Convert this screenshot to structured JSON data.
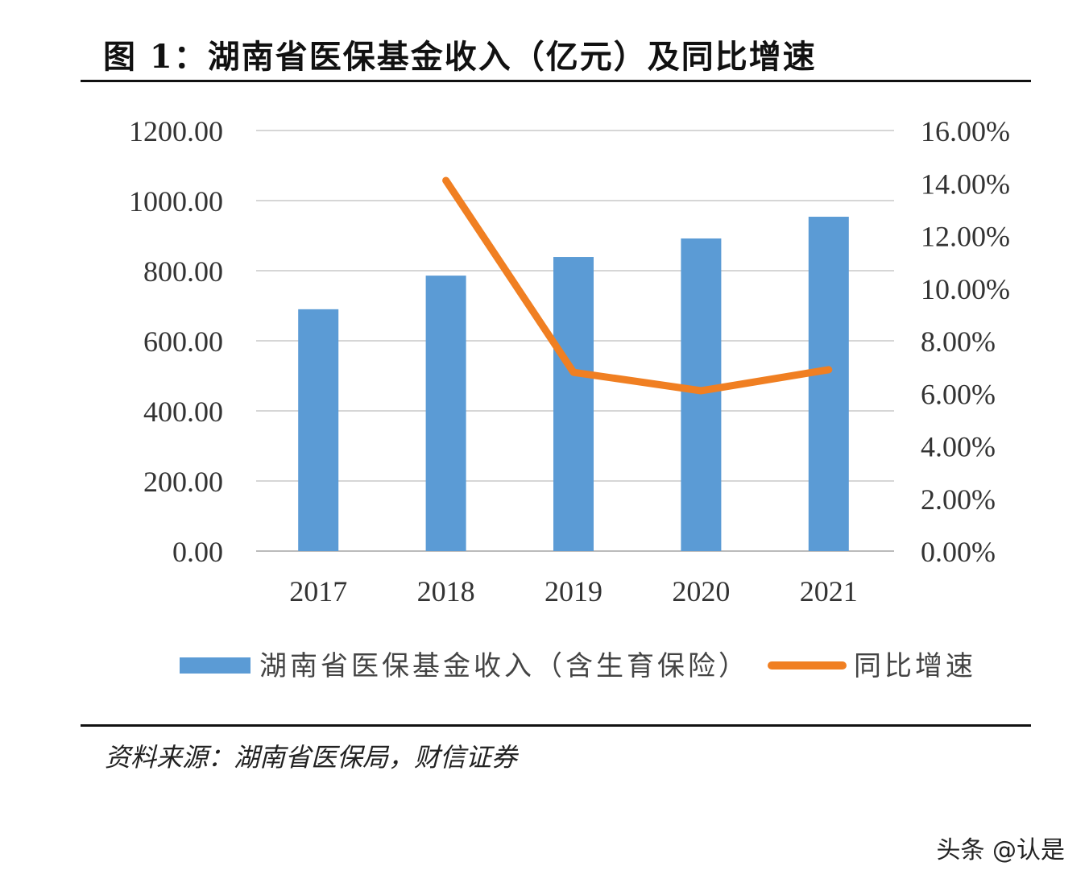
{
  "title": "图 1：湖南省医保基金收入（亿元）及同比增速",
  "source": "资料来源：湖南省医保局，财信证券",
  "watermark": "头条 @认是",
  "chart_data": {
    "type": "bar+line",
    "categories": [
      "2017",
      "2018",
      "2019",
      "2020",
      "2021"
    ],
    "series": [
      {
        "name": "湖南省医保基金收入（含生育保险）",
        "type": "bar",
        "axis": "left",
        "color": "#5b9bd5",
        "values": [
          690,
          786,
          839,
          892,
          954
        ]
      },
      {
        "name": "同比增速",
        "type": "line",
        "axis": "right",
        "color": "#f07f22",
        "values": [
          null,
          14.1,
          6.8,
          6.1,
          6.9
        ]
      }
    ],
    "left_axis": {
      "ylim": [
        0,
        1200
      ],
      "ticks": [
        "0.00",
        "200.00",
        "400.00",
        "600.00",
        "800.00",
        "1000.00",
        "1200.00"
      ]
    },
    "right_axis": {
      "ylim": [
        0,
        16
      ],
      "ticks": [
        "0.00%",
        "2.00%",
        "4.00%",
        "6.00%",
        "8.00%",
        "10.00%",
        "12.00%",
        "14.00%",
        "16.00%"
      ]
    },
    "grid": true,
    "legend_position": "bottom"
  }
}
